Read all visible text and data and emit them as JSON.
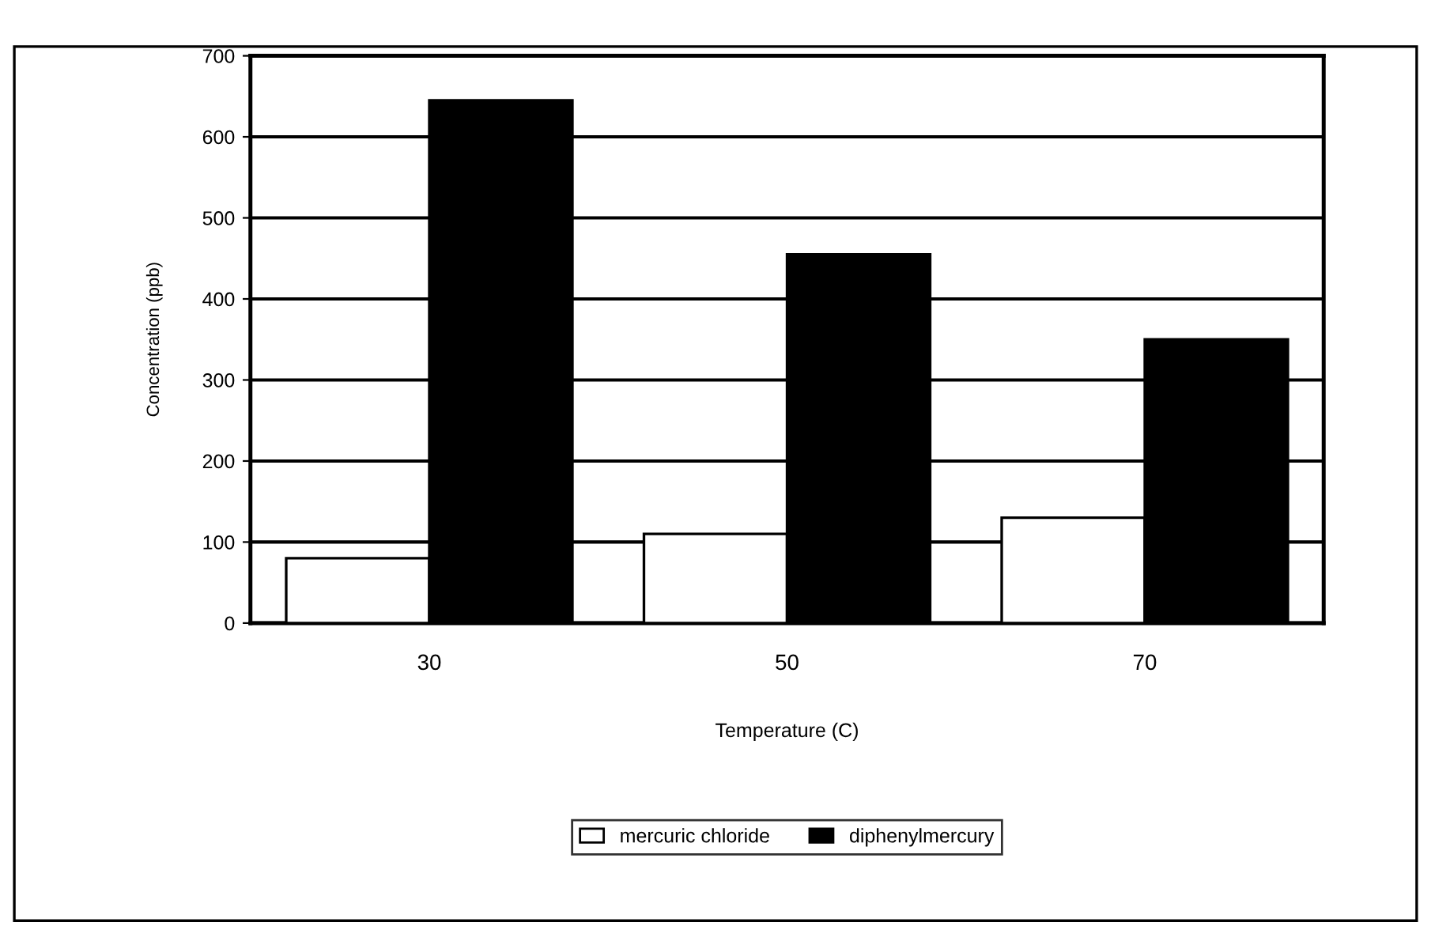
{
  "chart_data": {
    "type": "bar",
    "xlabel": "Temperature (C)",
    "ylabel": "Concentration (ppb)",
    "categories": [
      "30",
      "50",
      "70"
    ],
    "series": [
      {
        "name": "mercuric chloride",
        "color": "#ffffff",
        "values": [
          80,
          110,
          130
        ]
      },
      {
        "name": "diphenylmercury",
        "color": "#000000",
        "values": [
          645,
          455,
          350
        ]
      }
    ],
    "ylim": [
      0,
      700
    ],
    "yticks": [
      0,
      100,
      200,
      300,
      400,
      500,
      600,
      700
    ],
    "grid": "y",
    "legend": "bottom"
  }
}
